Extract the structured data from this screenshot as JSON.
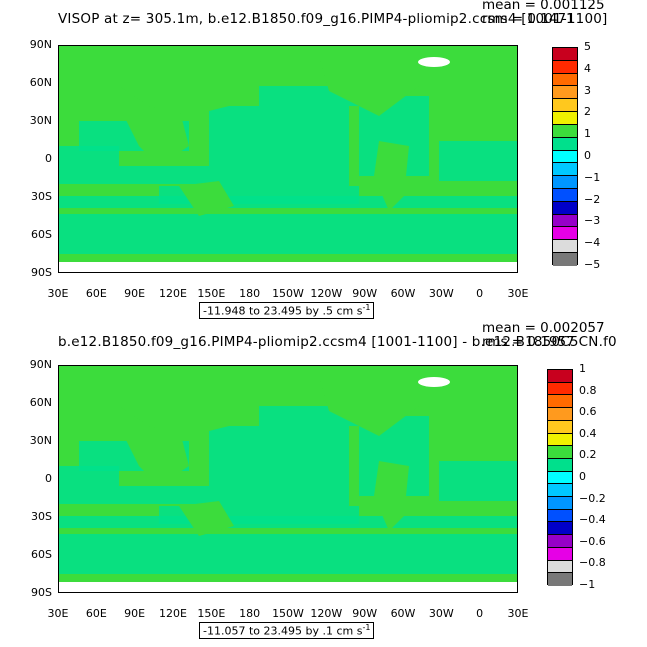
{
  "chart_data": [
    {
      "type": "heatmap",
      "title": "VISOP at z= 305.1m, b.e12.B1850.f09_g16.PIMP4-pliomip2.ccsm4 [1001-1100]",
      "stats": {
        "mean": "mean = 0.001125",
        "rms": "rms = 0.1471"
      },
      "y_ticks": [
        "90N",
        "60N",
        "30N",
        "0",
        "30S",
        "60S",
        "90S"
      ],
      "x_ticks": [
        "30E",
        "60E",
        "90E",
        "120E",
        "150E",
        "180",
        "150W",
        "120W",
        "90W",
        "60W",
        "30W",
        "0",
        "30E"
      ],
      "range_label": "-11.948 to 23.495 by .5 cm s",
      "range_sup": "-1",
      "levels": [
        "5",
        "4",
        "3",
        "2",
        "1",
        "0",
        "−1",
        "−2",
        "−3",
        "−4",
        "−5"
      ],
      "colors": [
        "#c8001e",
        "#ff2a00",
        "#ff6a00",
        "#ff9a1e",
        "#ffc81e",
        "#f0f000",
        "#3cdc3c",
        "#00e08c",
        "#00ffff",
        "#00c8ff",
        "#0096ff",
        "#0050ff",
        "#0000c8",
        "#9600c8",
        "#e600e6",
        "#dcdcdc",
        "#787878"
      ]
    },
    {
      "type": "heatmap",
      "title": "b.e12.B1850.f09_g16.PIMP4-pliomip2.ccsm4 [1001-1100] - b.e12.B1850C5CN.f0",
      "stats": {
        "mean": "mean = 0.002057",
        "rms": "rms = 0.1957"
      },
      "y_ticks": [
        "90N",
        "60N",
        "30N",
        "0",
        "30S",
        "60S",
        "90S"
      ],
      "x_ticks": [
        "30E",
        "60E",
        "90E",
        "120E",
        "150E",
        "180",
        "150W",
        "120W",
        "90W",
        "60W",
        "30W",
        "0",
        "30E"
      ],
      "range_label": "-11.057 to 23.495 by .1 cm s",
      "range_sup": "-1",
      "levels": [
        "1",
        "0.8",
        "0.6",
        "0.4",
        "0.2",
        "0",
        "−0.2",
        "−0.4",
        "−0.6",
        "−0.8",
        "−1"
      ],
      "colors": [
        "#c8001e",
        "#ff2a00",
        "#ff6a00",
        "#ff9a1e",
        "#ffc81e",
        "#f0f000",
        "#3cdc3c",
        "#00e08c",
        "#00ffff",
        "#00c8ff",
        "#0096ff",
        "#0050ff",
        "#0000c8",
        "#9600c8",
        "#e600e6",
        "#dcdcdc",
        "#787878"
      ]
    }
  ]
}
